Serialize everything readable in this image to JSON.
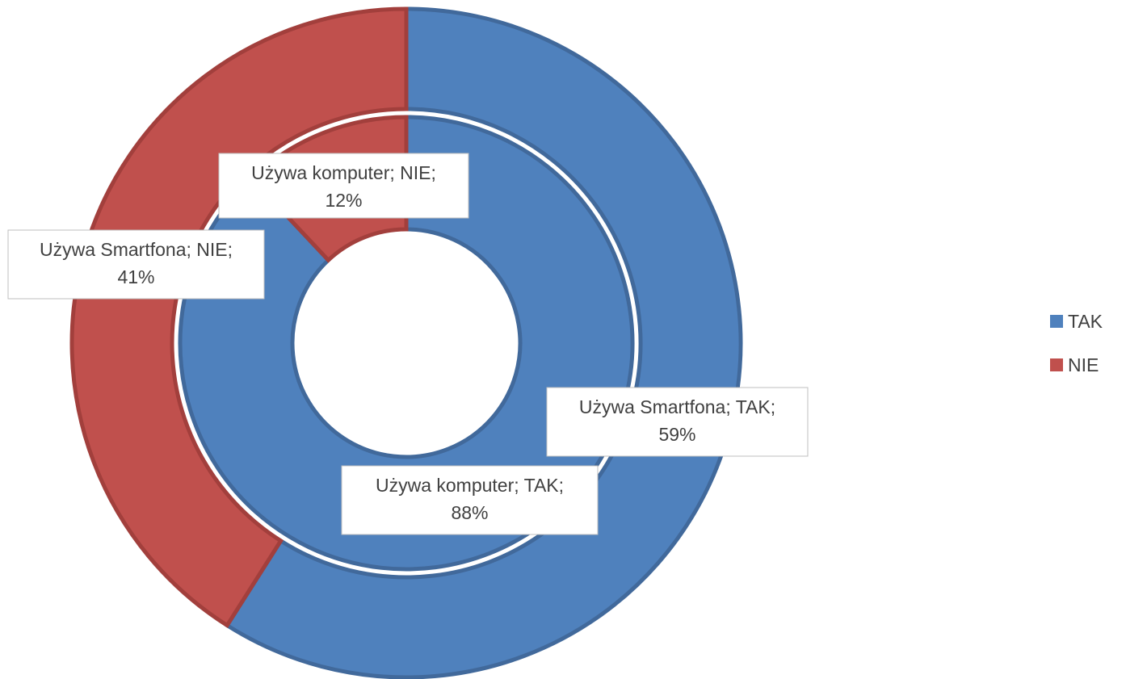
{
  "chart_data": {
    "type": "doughnut",
    "categories": [
      "TAK",
      "NIE"
    ],
    "colors": [
      "#4f81bd",
      "#c0504d"
    ],
    "series": [
      {
        "values": [
          88,
          12
        ],
        "value_labels": [
          "Używa komputer; TAK; 88%",
          "Używa komputer; NIE; 12%"
        ]
      },
      {
        "values": [
          59,
          41
        ],
        "value_labels": [
          "Używa Smartfona; TAK; 59%",
          "Używa Smartfona; NIE; 41%"
        ]
      }
    ],
    "legend": "right"
  }
}
